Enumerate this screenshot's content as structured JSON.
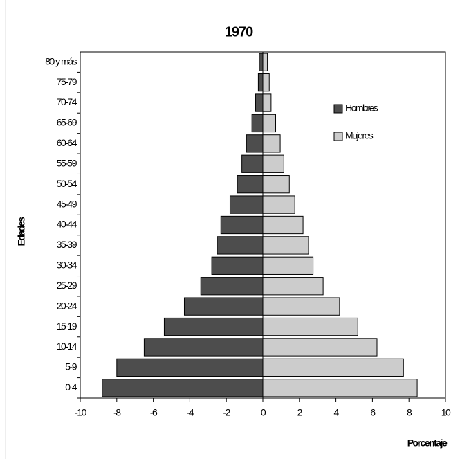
{
  "chart_data": {
    "type": "pyramid",
    "title": "1970",
    "x_label": "Porcentaje",
    "y_label": "Edades",
    "categories": [
      "0-4",
      "5-9",
      "10-14",
      "15-19",
      "20-24",
      "25-29",
      "30-34",
      "35-39",
      "40-44",
      "45-49",
      "50-54",
      "55-59",
      "60-64",
      "65-69",
      "70-74",
      "75-79",
      "80 y más"
    ],
    "series": [
      {
        "name": "Hombres",
        "color": "#4d4d4d",
        "values": [
          -8.8,
          -8.0,
          -6.5,
          -5.4,
          -4.3,
          -3.4,
          -2.8,
          -2.5,
          -2.3,
          -1.8,
          -1.4,
          -1.15,
          -0.9,
          -0.6,
          -0.4,
          -0.25,
          -0.2
        ]
      },
      {
        "name": "Mujeres",
        "color": "#cccccc",
        "values": [
          8.45,
          7.7,
          6.25,
          5.2,
          4.2,
          3.3,
          2.75,
          2.5,
          2.2,
          1.75,
          1.45,
          1.15,
          0.95,
          0.7,
          0.45,
          0.35,
          0.25
        ]
      }
    ],
    "xlim": [
      -10,
      10
    ],
    "xticks": [
      -10,
      -8,
      -6,
      -4,
      -2,
      0,
      2,
      4,
      6,
      8,
      10
    ],
    "legend": "upper right"
  }
}
